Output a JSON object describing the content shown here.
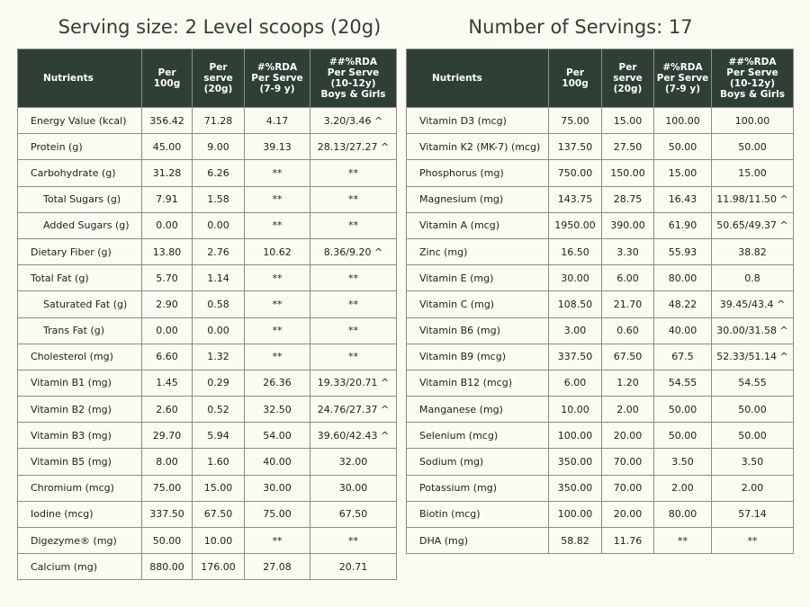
{
  "left": {
    "title": "Serving size: 2 Level scoops (20g)",
    "headers": [
      "Nutrients",
      "Per\n100g",
      "Per\nserve\n(20g)",
      "#%RDA\nPer Serve\n(7-9 y)",
      "##%RDA\nPer Serve\n(10-12y)\nBoys & Girls"
    ],
    "rows": [
      [
        "Energy Value (kcal)",
        "356.42",
        "71.28",
        "4.17",
        "3.20/3.46 ^"
      ],
      [
        "Protein (g)",
        "45.00",
        "9.00",
        "39.13",
        "28.13/27.27 ^"
      ],
      [
        "Carbohydrate (g)",
        "31.28",
        "6.26",
        "**",
        "**"
      ],
      [
        "Total Sugars (g)",
        "7.91",
        "1.58",
        "**",
        "**"
      ],
      [
        "Added Sugars (g)",
        "0.00",
        "0.00",
        "**",
        "**"
      ],
      [
        "Dietary Fiber (g)",
        "13.80",
        "2.76",
        "10.62",
        "8.36/9.20 ^"
      ],
      [
        "Total Fat (g)",
        "5.70",
        "1.14",
        "**",
        "**"
      ],
      [
        "Saturated Fat (g)",
        "2.90",
        "0.58",
        "**",
        "**"
      ],
      [
        "Trans Fat (g)",
        "0.00",
        "0.00",
        "**",
        "**"
      ],
      [
        "Cholesterol (mg)",
        "6.60",
        "1.32",
        "**",
        "**"
      ],
      [
        "Vitamin B1 (mg)",
        "1.45",
        "0.29",
        "26.36",
        "19.33/20.71 ^"
      ],
      [
        "Vitamin B2 (mg)",
        "2.60",
        "0.52",
        "32.50",
        "24.76/27.37 ^"
      ],
      [
        "Vitamin B3 (mg)",
        "29.70",
        "5.94",
        "54.00",
        "39.60/42.43 ^"
      ],
      [
        "Vitamin B5 (mg)",
        "8.00",
        "1.60",
        "40.00",
        "32.00"
      ],
      [
        "Chromium (mcg)",
        "75.00",
        "15.00",
        "30.00",
        "30.00"
      ],
      [
        "Iodine (mcg)",
        "337.50",
        "67.50",
        "75.00",
        "67.50"
      ],
      [
        "Digezyme® (mg)",
        "50.00",
        "10.00",
        "**",
        "**"
      ],
      [
        "Calcium (mg)",
        "880.00",
        "176.00",
        "27.08",
        "20.71"
      ]
    ]
  },
  "right": {
    "title": "Number of Servings: 17",
    "headers": [
      "Nutrients",
      "Per\n100g",
      "Per\nserve\n(20g)",
      "#%RDA\nPer Serve\n(7-9 y)",
      "##%RDA\nPer Serve\n(10-12y)\nBoys & Girls"
    ],
    "rows": [
      [
        "Vitamin D3 (mcg)",
        "75.00",
        "15.00",
        "100.00",
        "100.00"
      ],
      [
        "Vitamin K2 (MK-7) (mcg)",
        "137.50",
        "27.50",
        "50.00",
        "50.00"
      ],
      [
        "Phosphorus (mg)",
        "750.00",
        "150.00",
        "15.00",
        "15.00"
      ],
      [
        "Magnesium (mg)",
        "143.75",
        "28.75",
        "16.43",
        "11.98/11.50 ^"
      ],
      [
        "Vitamin A (mcg)",
        "1950.00",
        "390.00",
        "61.90",
        "50.65/49.37 ^"
      ],
      [
        "Zinc (mg)",
        "16.50",
        "3.30",
        "55.93",
        "38.82"
      ],
      [
        "Vitamin E (mg)",
        "30.00",
        "6.00",
        "80.00",
        "0.8"
      ],
      [
        "Vitamin C (mg)",
        "108.50",
        "21.70",
        "48.22",
        "39.45/43.4 ^"
      ],
      [
        "Vitamin B6 (mg)",
        "3.00",
        "0.60",
        "40.00",
        "30.00/31.58 ^"
      ],
      [
        "Vitamin B9 (mcg)",
        "337.50",
        "67.50",
        "67.5",
        "52.33/51.14 ^"
      ],
      [
        "Vitamin B12 (mcg)",
        "6.00",
        "1.20",
        "54.55",
        "54.55"
      ],
      [
        "Manganese (mg)",
        "10.00",
        "2.00",
        "50.00",
        "50.00"
      ],
      [
        "Selenium (mcg)",
        "100.00",
        "20.00",
        "50.00",
        "50.00"
      ],
      [
        "Sodium (mg)",
        "350.00",
        "70.00",
        "3.50",
        "3.50"
      ],
      [
        "Potassium (mg)",
        "350.00",
        "70.00",
        "2.00",
        "2.00"
      ],
      [
        "Biotin (mcg)",
        "100.00",
        "20.00",
        "80.00",
        "57.14"
      ],
      [
        "DHA (mg)",
        "58.82",
        "11.76",
        "**",
        "**"
      ]
    ]
  }
}
